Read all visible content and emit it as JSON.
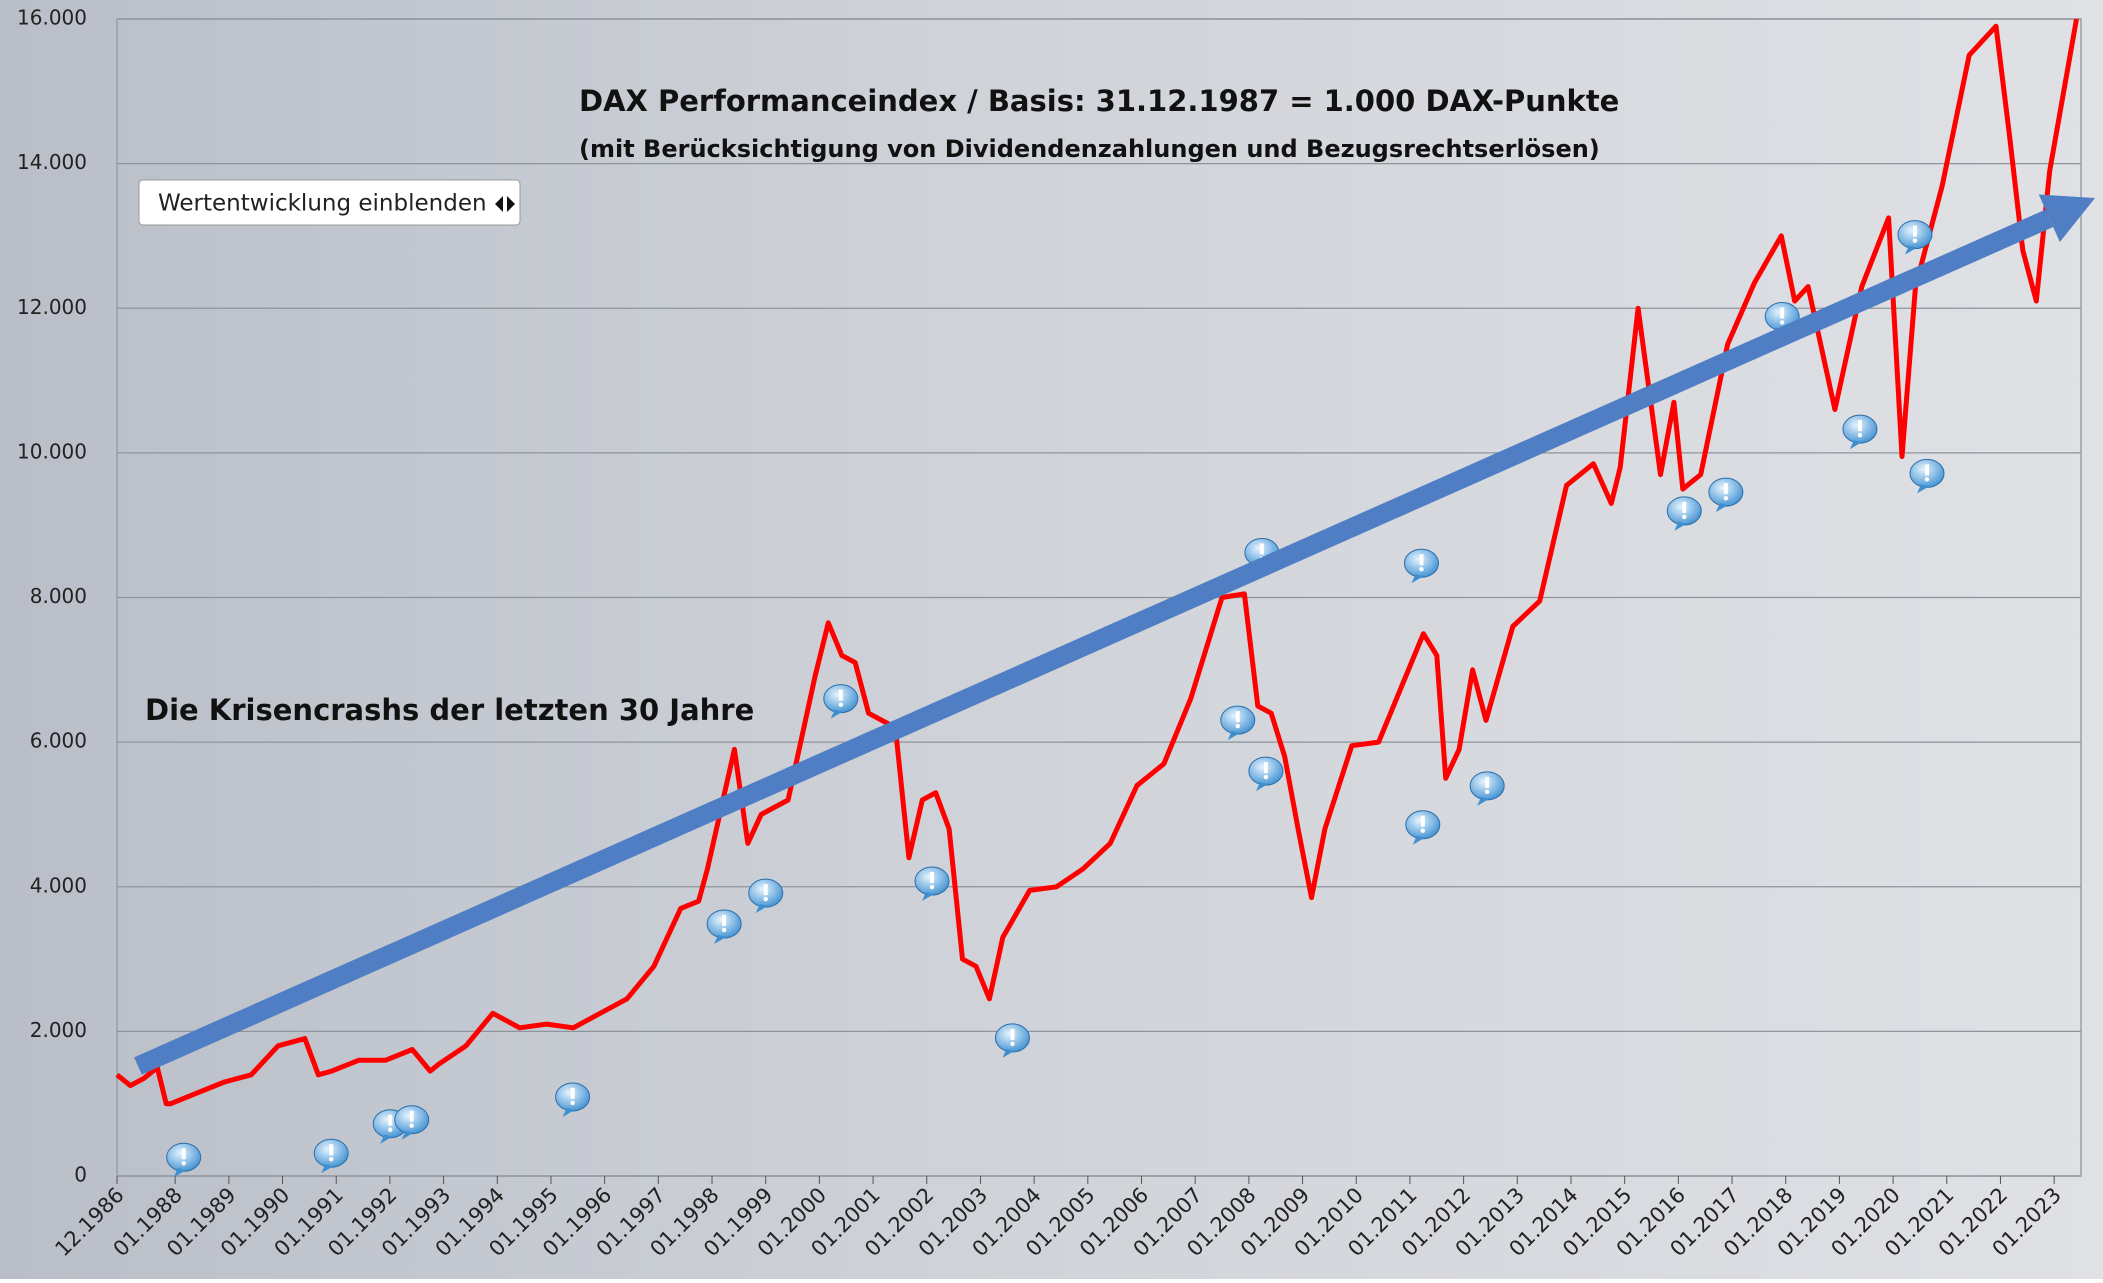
{
  "chart_data": {
    "type": "line",
    "title": "DAX Performanceindex / Basis: 31.12.1987 = 1.000 DAX-Punkte",
    "subtitle": "(mit Berücksichtigung von Dividendenzahlungen und Bezugsrechtserlösen)",
    "annotation": "Die Krisencrashs der letzten 30 Jahre",
    "color": "#ff0000",
    "x": [
      "12.1986",
      "03.1987",
      "06.1987",
      "09.1987",
      "11.1987",
      "12.1987",
      "06.1988",
      "12.1988",
      "06.1989",
      "12.1989",
      "06.1990",
      "09.1990",
      "12.1990",
      "06.1991",
      "12.1991",
      "06.1992",
      "10.1992",
      "12.1992",
      "06.1993",
      "12.1993",
      "06.1994",
      "12.1994",
      "06.1995",
      "12.1995",
      "06.1996",
      "12.1996",
      "06.1997",
      "10.1997",
      "12.1997",
      "06.1998",
      "09.1998",
      "12.1998",
      "06.1999",
      "12.1999",
      "03.2000",
      "06.2000",
      "09.2000",
      "12.2000",
      "06.2001",
      "09.2001",
      "12.2001",
      "03.2002",
      "06.2002",
      "09.2002",
      "12.2002",
      "03.2003",
      "06.2003",
      "12.2003",
      "06.2004",
      "12.2004",
      "06.2005",
      "12.2005",
      "06.2006",
      "12.2006",
      "07.2007",
      "12.2007",
      "03.2008",
      "06.2008",
      "09.2008",
      "12.2008",
      "03.2009",
      "06.2009",
      "12.2009",
      "06.2010",
      "12.2010",
      "04.2011",
      "07.2011",
      "09.2011",
      "12.2011",
      "03.2012",
      "06.2012",
      "12.2012",
      "06.2013",
      "12.2013",
      "06.2014",
      "10.2014",
      "12.2014",
      "04.2015",
      "09.2015",
      "12.2015",
      "02.2016",
      "06.2016",
      "12.2016",
      "06.2017",
      "12.2017",
      "03.2018",
      "06.2018",
      "12.2018",
      "06.2019",
      "12.2019",
      "03.2020",
      "06.2020",
      "12.2020",
      "06.2021",
      "12.2021",
      "03.2022",
      "06.2022",
      "09.2022",
      "12.2022",
      "06.2023"
    ],
    "values": [
      1400,
      1250,
      1350,
      1500,
      1000,
      1000,
      1150,
      1300,
      1400,
      1800,
      1900,
      1400,
      1450,
      1600,
      1600,
      1750,
      1450,
      1550,
      1800,
      2250,
      2050,
      2100,
      2050,
      2250,
      2450,
      2900,
      3700,
      3800,
      4250,
      5900,
      4600,
      5000,
      5200,
      6900,
      7650,
      7200,
      7100,
      6400,
      6200,
      4400,
      5200,
      5300,
      4800,
      3000,
      2900,
      2450,
      3300,
      3950,
      4000,
      4250,
      4600,
      5400,
      5700,
      6600,
      8000,
      8050,
      6500,
      6400,
      5800,
      4800,
      3850,
      4800,
      5950,
      6000,
      6900,
      7500,
      7200,
      5500,
      5900,
      7000,
      6300,
      7600,
      7950,
      9550,
      9850,
      9300,
      9800,
      12000,
      9700,
      10700,
      9500,
      9700,
      11500,
      12350,
      13000,
      12100,
      12300,
      10600,
      12300,
      13250,
      9950,
      12300,
      13700,
      15500,
      15900,
      14400,
      12800,
      12100,
      13900,
      16000
    ],
    "xlim": [
      "12.1986",
      "07.2023"
    ],
    "xticks": [
      "12.1986",
      "01.1988",
      "01.1989",
      "01.1990",
      "01.1991",
      "01.1992",
      "01.1993",
      "01.1994",
      "01.1995",
      "01.1996",
      "01.1997",
      "01.1998",
      "01.1999",
      "01.2000",
      "01.2001",
      "01.2002",
      "01.2003",
      "01.2004",
      "01.2005",
      "01.2006",
      "01.2007",
      "01.2008",
      "01.2009",
      "01.2010",
      "01.2011",
      "01.2012",
      "01.2013",
      "01.2014",
      "01.2015",
      "01.2016",
      "01.2017",
      "01.2018",
      "01.2019",
      "01.2020",
      "01.2021",
      "01.2022",
      "01.2023"
    ],
    "ylim": [
      0,
      16000
    ],
    "yticks": [
      0,
      {
        "value": 2000,
        "label": "2.000"
      },
      {
        "value": 4000,
        "label": "4.000"
      },
      {
        "value": 6000,
        "label": "6.000"
      },
      {
        "value": 8000,
        "label": "8.000"
      },
      {
        "value": 10000,
        "label": "10.000"
      },
      {
        "value": 12000,
        "label": "12.000"
      },
      {
        "value": 14000,
        "label": "14.000"
      },
      {
        "value": 16000,
        "label": "16.000"
      }
    ],
    "grid": true
  },
  "controls": {
    "button": "Wertentwicklung einblenden"
  }
}
